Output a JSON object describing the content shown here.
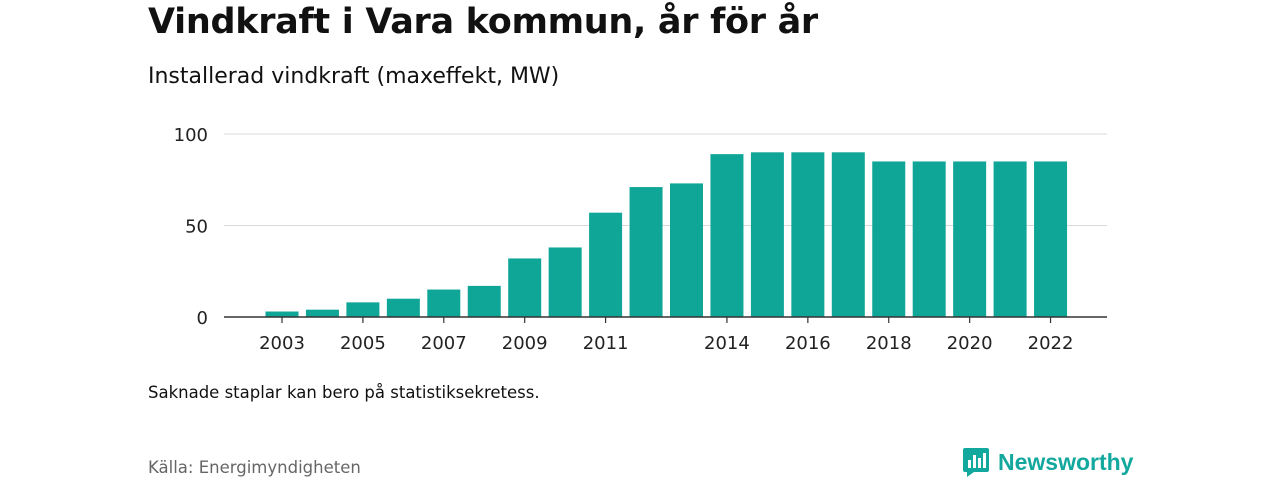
{
  "chart_data": {
    "type": "bar",
    "title": "Vindkraft i Vara kommun, år för år",
    "subtitle": "Installerad vindkraft (maxeffekt, MW)",
    "categories": [
      "2003",
      "2004",
      "2005",
      "2006",
      "2007",
      "2008",
      "2009",
      "2010",
      "2011",
      "2012",
      "2013",
      "2014",
      "2015",
      "2016",
      "2017",
      "2018",
      "2019",
      "2020",
      "2021",
      "2022"
    ],
    "x_tick_labels": [
      "2003",
      "",
      "2005",
      "",
      "2007",
      "",
      "2009",
      "",
      "2011",
      "",
      "",
      "2014",
      "",
      "2016",
      "",
      "2018",
      "",
      "2020",
      "",
      "2022"
    ],
    "values": [
      3,
      4,
      8,
      10,
      15,
      17,
      32,
      38,
      57,
      71,
      73,
      89,
      90,
      90,
      90,
      85,
      85,
      85,
      85,
      85
    ],
    "ylim": [
      0,
      100
    ],
    "yticks": [
      0,
      50,
      100
    ],
    "grid": true,
    "colors": {
      "bar": "#0fa698",
      "grid": "#d9d9d9",
      "axis": "#333333"
    }
  },
  "note": "Saknade staplar kan bero på statistiksekretess.",
  "source": "Källa: Energimyndigheten",
  "brand": {
    "name": "Newsworthy",
    "icon": "newsworthy-logo-icon",
    "color": "#13a89e"
  }
}
